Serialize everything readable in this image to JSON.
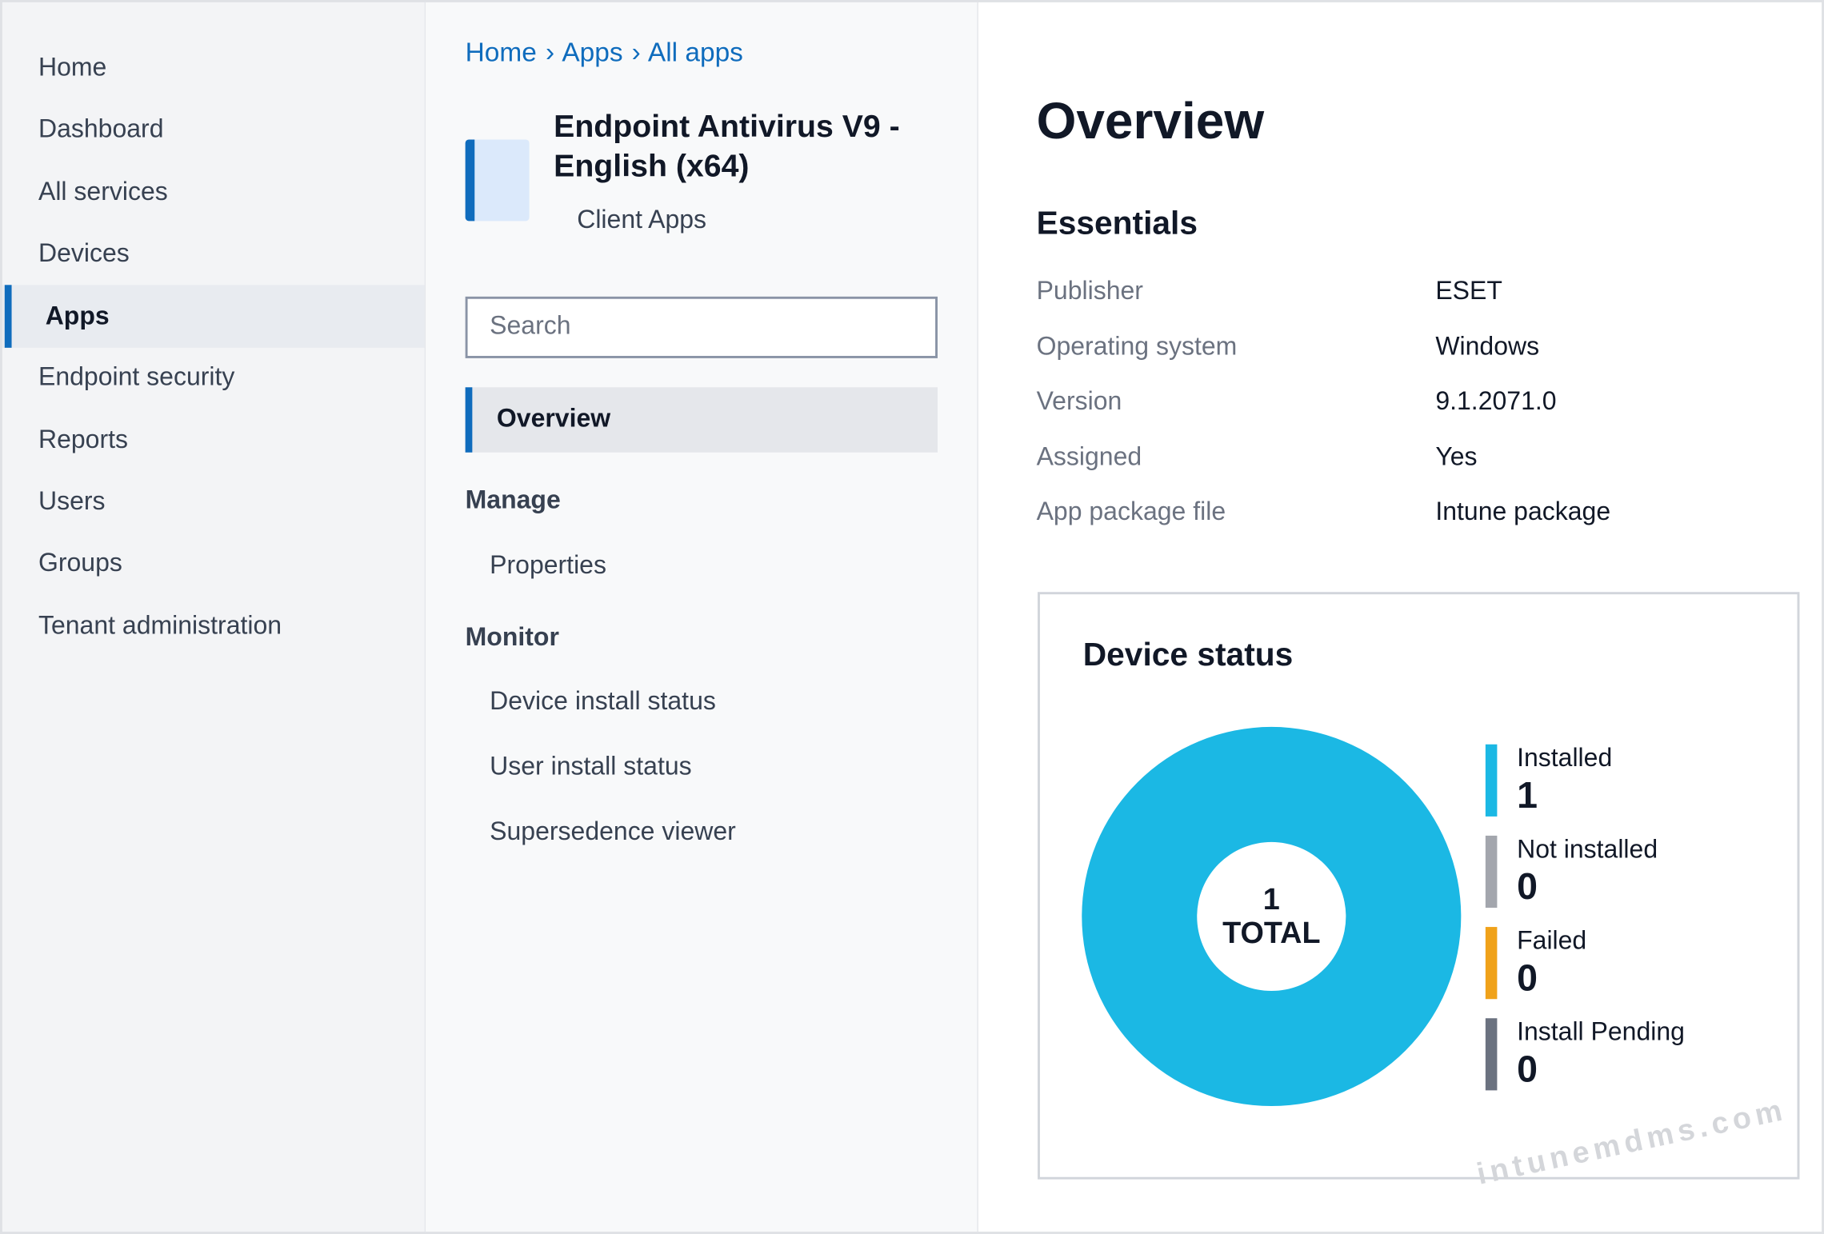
{
  "nav": {
    "items": [
      "Home",
      "Dashboard",
      "All services",
      "Devices",
      "Apps",
      "Endpoint security",
      "Reports",
      "Users",
      "Groups",
      "Tenant administration"
    ]
  },
  "breadcrumb": [
    "Home",
    "Apps",
    "All apps"
  ],
  "app": {
    "title_lines": [
      "Endpoint Antivirus V9 -",
      "English (x64)"
    ],
    "subtitle": "Client Apps"
  },
  "search": {
    "placeholder": "Search"
  },
  "menu": {
    "active": "Overview",
    "groups": [
      {
        "title": "Manage",
        "items": [
          "Properties"
        ]
      },
      {
        "title": "Monitor",
        "items": [
          "Device install status",
          "User install status",
          "Supersedence viewer"
        ]
      }
    ]
  },
  "overview": {
    "title": "Overview",
    "essentials_title": "Essentials",
    "rows": [
      [
        "Publisher",
        "ESET"
      ],
      [
        "Operating system",
        "Windows"
      ],
      [
        "Version",
        "9.1.2071.0"
      ],
      [
        "Assigned",
        "Yes"
      ],
      [
        "App package file",
        "Intune package"
      ]
    ]
  },
  "device_status": {
    "type": "donut",
    "title": "Device status",
    "total": 1,
    "total_label": "TOTAL",
    "series": [
      {
        "name": "Installed",
        "color": "#1bb8e4",
        "value": 1
      },
      {
        "name": "Not installed",
        "color": "#a3a6ad",
        "value": 0
      },
      {
        "name": "Failed",
        "color": "#f0a21a",
        "value": 0
      },
      {
        "name": "Install Pending",
        "color": "#6b7280",
        "value": 0
      }
    ]
  },
  "watermark": "intunemdms.com"
}
